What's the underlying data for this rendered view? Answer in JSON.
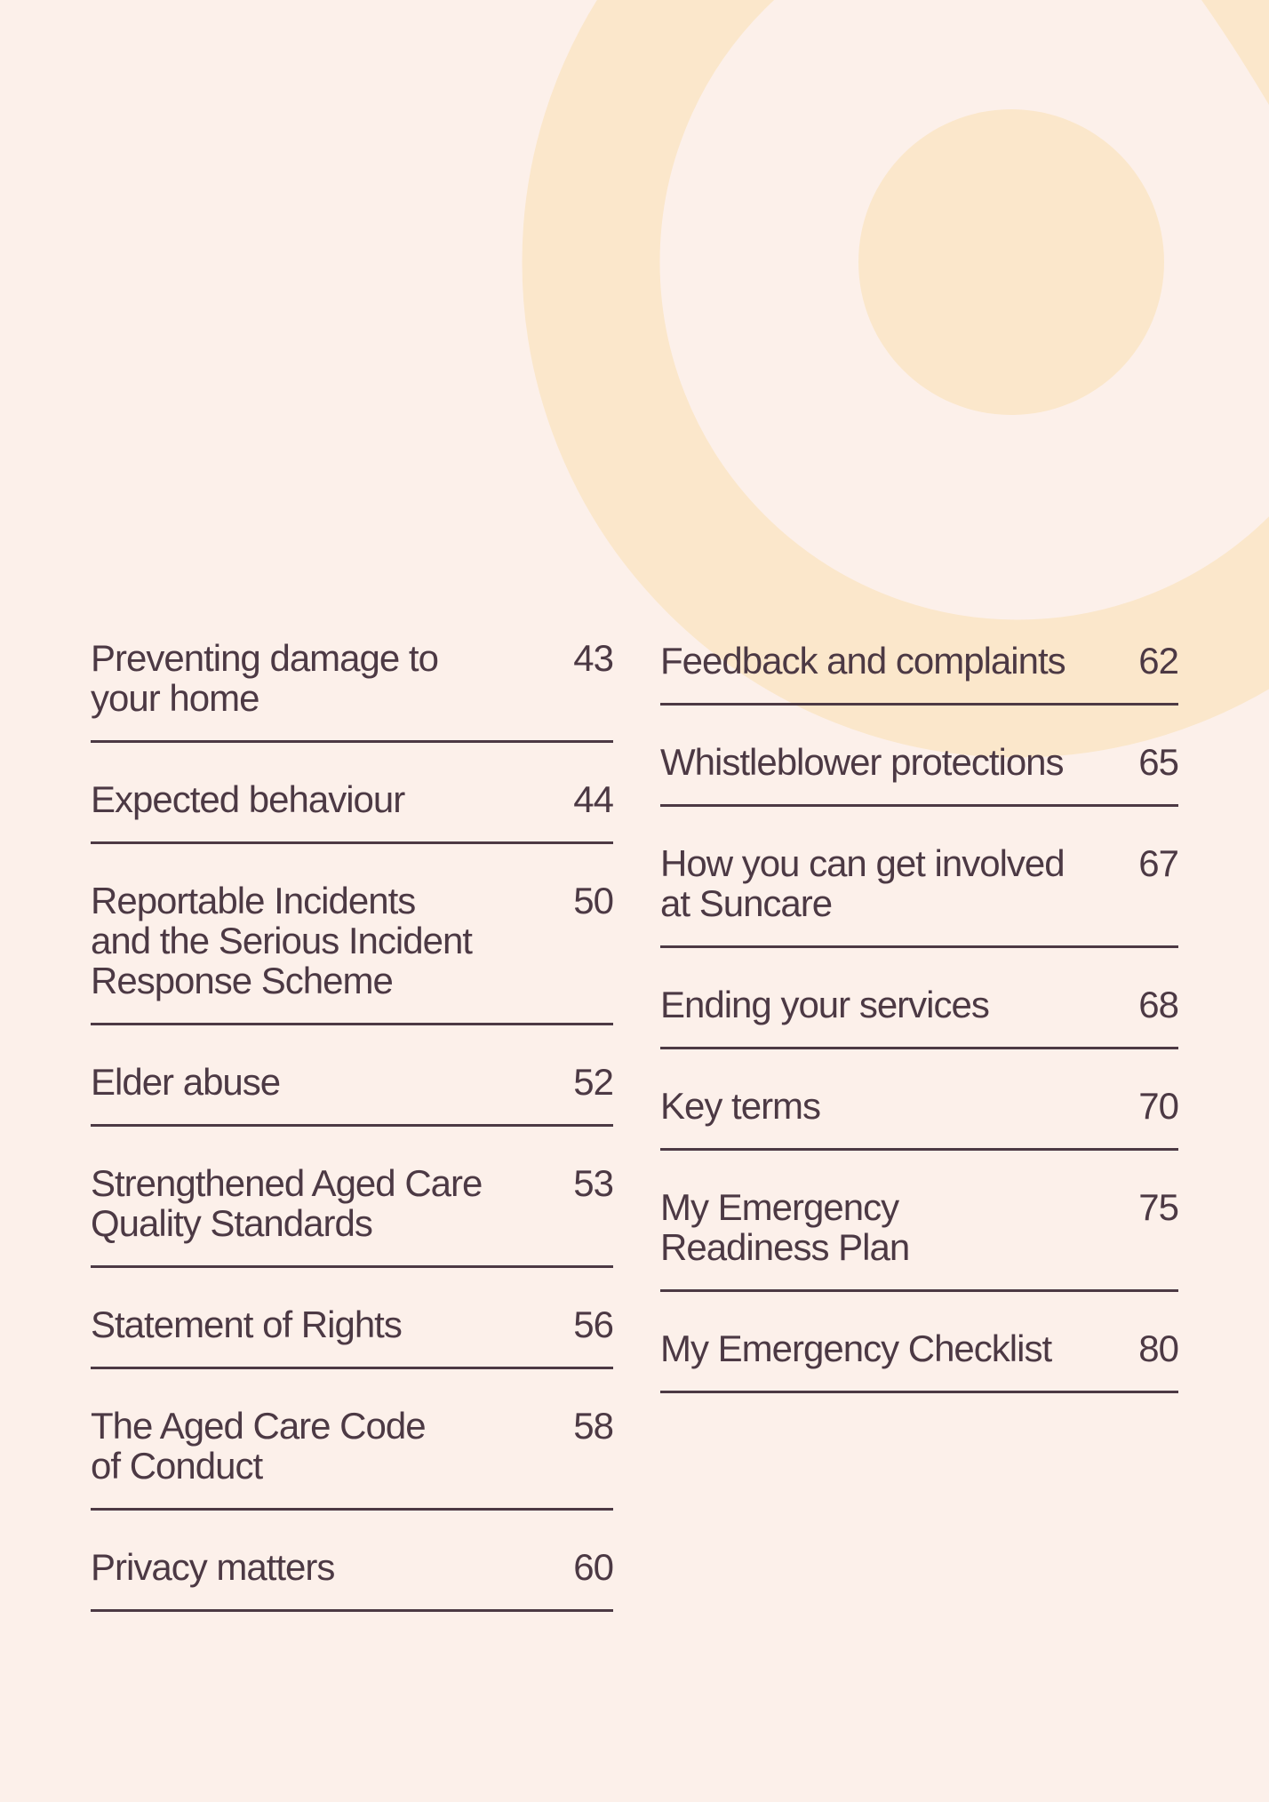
{
  "page": {
    "background_color": "#FCF0EA",
    "accent_color": "#FBE7CB",
    "text_color": "#4C3944"
  },
  "toc": {
    "columns": [
      {
        "side": "left",
        "entries": [
          {
            "title_lines": [
              "Preventing damage to",
              "your home"
            ],
            "page": "43"
          },
          {
            "title_lines": [
              "Expected behaviour"
            ],
            "page": "44"
          },
          {
            "title_lines": [
              "Reportable Incidents",
              "and the Serious Incident",
              "Response Scheme"
            ],
            "page": "50"
          },
          {
            "title_lines": [
              "Elder abuse"
            ],
            "page": "52"
          },
          {
            "title_lines": [
              "Strengthened Aged Care",
              "Quality Standards"
            ],
            "page": "53"
          },
          {
            "title_lines": [
              "Statement of Rights"
            ],
            "page": "56"
          },
          {
            "title_lines": [
              "The Aged Care Code",
              "of Conduct"
            ],
            "page": "58"
          },
          {
            "title_lines": [
              "Privacy matters"
            ],
            "page": "60"
          }
        ]
      },
      {
        "side": "right",
        "entries": [
          {
            "title_lines": [
              "Feedback and complaints"
            ],
            "page": "62"
          },
          {
            "title_lines": [
              "Whistleblower protections"
            ],
            "page": "65"
          },
          {
            "title_lines": [
              "How you can get involved",
              "at Suncare"
            ],
            "page": "67"
          },
          {
            "title_lines": [
              "Ending your services"
            ],
            "page": "68"
          },
          {
            "title_lines": [
              "Key terms"
            ],
            "page": "70"
          },
          {
            "title_lines": [
              "My Emergency",
              "Readiness Plan"
            ],
            "page": "75"
          },
          {
            "title_lines": [
              "My Emergency Checklist"
            ],
            "page": "80"
          }
        ]
      }
    ]
  }
}
